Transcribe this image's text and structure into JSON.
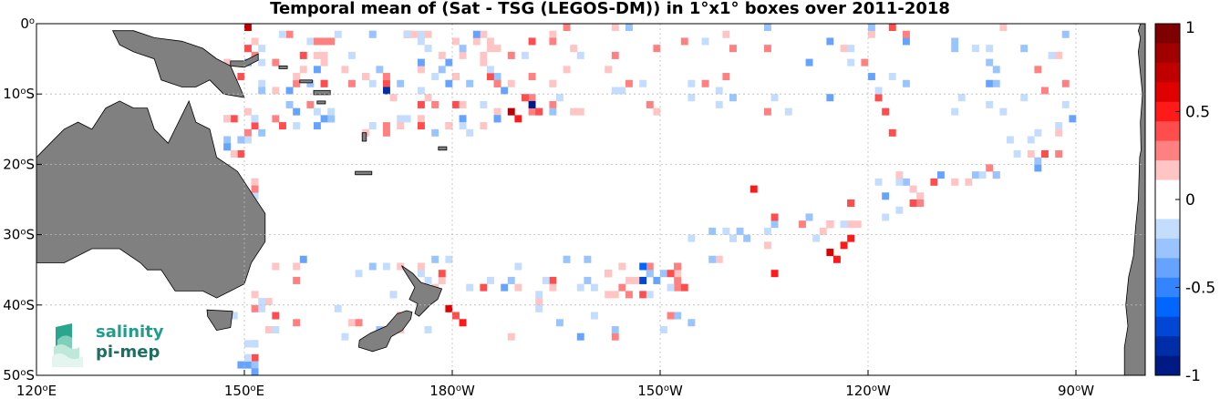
{
  "title": "Temporal mean of (Sat - TSG (LEGOS-DM)) in 1°x1° boxes over 2011-2018",
  "map": {
    "lon_range": [
      120,
      280
    ],
    "lat_range": [
      -50,
      0
    ],
    "lon_ticks": [
      {
        "deg": "120",
        "sup": "o",
        "hem": "E"
      },
      {
        "deg": "150",
        "sup": "o",
        "hem": "E"
      },
      {
        "deg": "180",
        "sup": "o",
        "hem": "W"
      },
      {
        "deg": "150",
        "sup": "o",
        "hem": "W"
      },
      {
        "deg": "120",
        "sup": "o",
        "hem": "W"
      },
      {
        "deg": "90",
        "sup": "o",
        "hem": "W"
      }
    ],
    "lat_ticks": [
      {
        "deg": "0",
        "sup": "o",
        "hem": ""
      },
      {
        "deg": "10",
        "sup": "o",
        "hem": "S"
      },
      {
        "deg": "20",
        "sup": "o",
        "hem": "S"
      },
      {
        "deg": "30",
        "sup": "o",
        "hem": "S"
      },
      {
        "deg": "40",
        "sup": "o",
        "hem": "S"
      },
      {
        "deg": "50",
        "sup": "o",
        "hem": "S"
      }
    ],
    "land_color": "#808080",
    "grid": true
  },
  "colorbar": {
    "range": [
      -1,
      1
    ],
    "tick_labels": [
      "1",
      "0.5",
      "0",
      "-0.5",
      "-1"
    ],
    "colors": [
      "#7f0000",
      "#a00000",
      "#c00000",
      "#e00000",
      "#ff1a1a",
      "#ff4d4d",
      "#ff8080",
      "#ffc4c4",
      "#ffffff",
      "#ffffff",
      "#c4ddff",
      "#99c4ff",
      "#66a3ff",
      "#3385ff",
      "#0066ff",
      "#0047d6",
      "#002ea8",
      "#001a85"
    ]
  },
  "logo": {
    "line1": "salinity",
    "line2": "pi-mep"
  }
}
